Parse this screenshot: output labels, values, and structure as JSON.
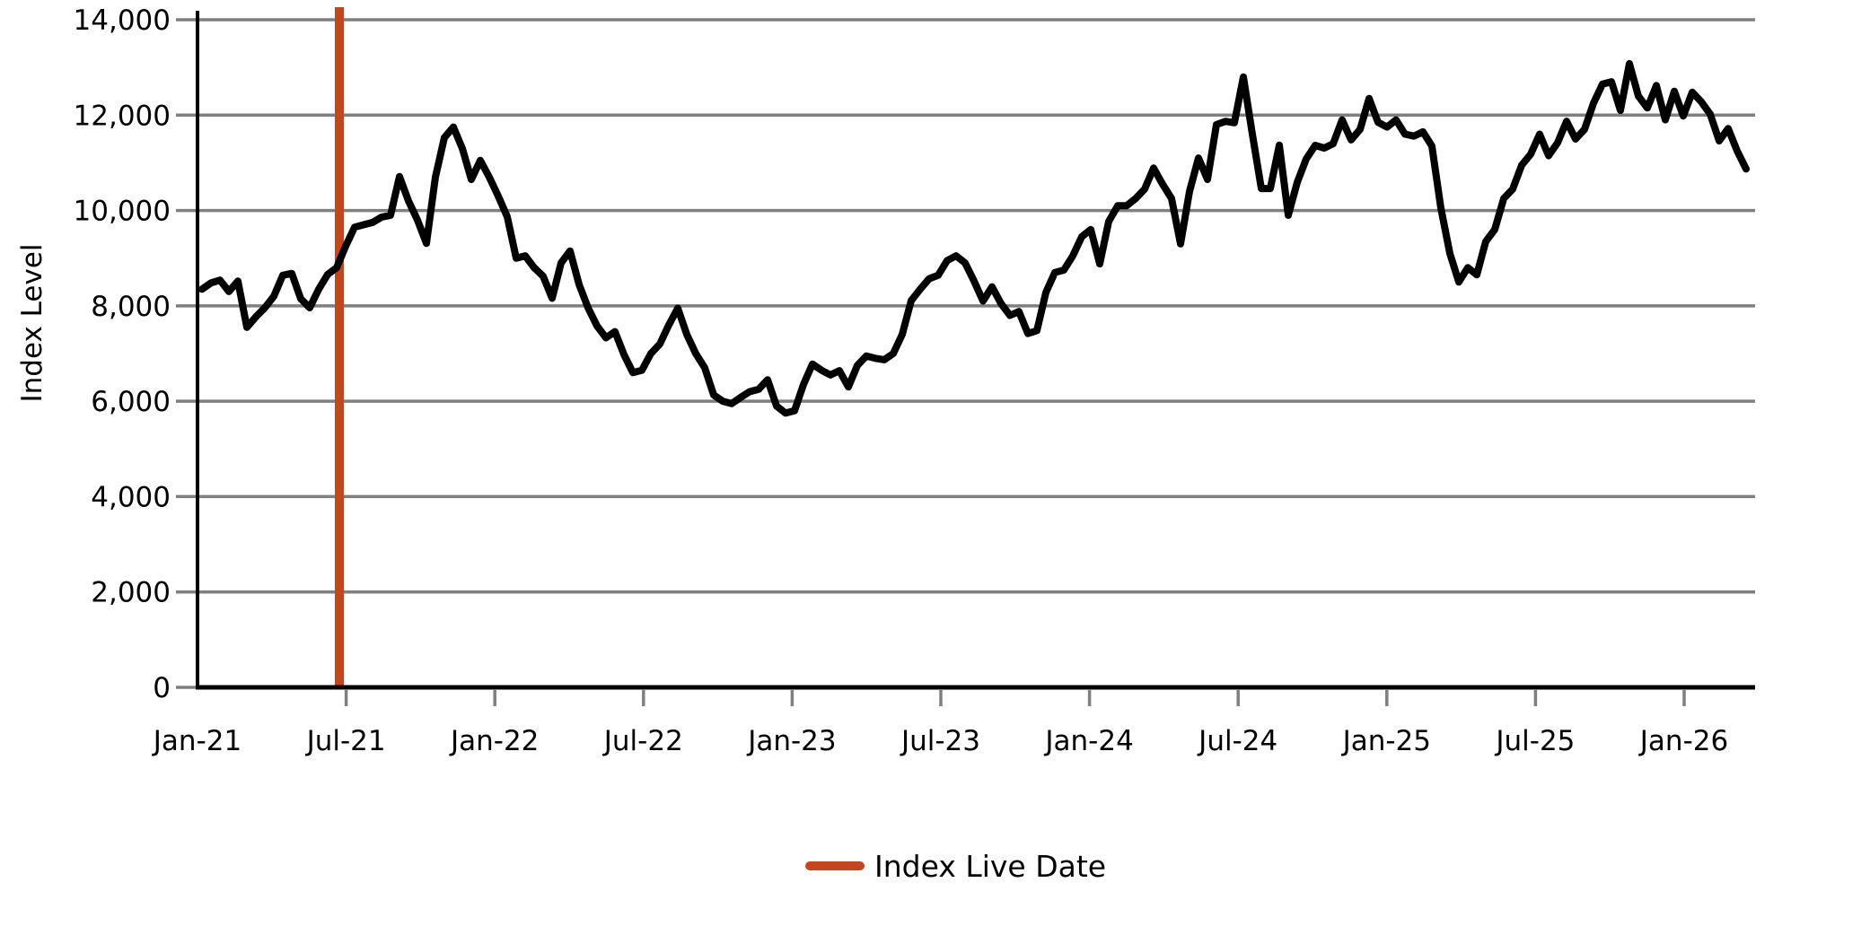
{
  "chart_data": {
    "type": "line",
    "title": "",
    "xlabel": "",
    "ylabel": "Index Level",
    "ylim": [
      0,
      14000
    ],
    "y_tick_values": [
      0,
      2000,
      4000,
      6000,
      8000,
      10000,
      12000,
      14000
    ],
    "y_tick_labels": [
      "0",
      "2,000",
      "4,000",
      "6,000",
      "8,000",
      "10,000",
      "12,000",
      "14,000"
    ],
    "x_tick_labels": [
      "Jan-21",
      "Jul-21",
      "Jan-22",
      "Jul-22",
      "Jan-23",
      "Jul-23",
      "Jan-24",
      "Jul-24",
      "Jan-25",
      "Jul-25",
      "Jan-26"
    ],
    "grid": true,
    "legend_position": "bottom-center",
    "legend": [
      {
        "label": "Index Live Date",
        "color": "#C5451D",
        "style": "vertical-line"
      }
    ],
    "annotations": [
      {
        "type": "vline",
        "name": "index-live-date",
        "date_approx": "2021-06-25",
        "color": "#C5451D"
      }
    ],
    "series": [
      {
        "name": "Index Level",
        "color": "#000000",
        "x_start_approx": "2021-01-06",
        "x_end_approx": "2026-03-20",
        "sampling": "evenly spaced, ~11 days per point",
        "values": [
          8350,
          8480,
          8540,
          8300,
          8520,
          7550,
          7770,
          7960,
          8200,
          8640,
          8680,
          8150,
          7960,
          8350,
          8660,
          8800,
          9250,
          9650,
          9700,
          9750,
          9860,
          9900,
          10710,
          10200,
          9800,
          9310,
          10700,
          11530,
          11750,
          11300,
          10650,
          11050,
          10700,
          10300,
          9870,
          9000,
          9050,
          8800,
          8620,
          8160,
          8900,
          9150,
          8450,
          7960,
          7580,
          7330,
          7460,
          6980,
          6600,
          6650,
          7000,
          7200,
          7600,
          7950,
          7400,
          7000,
          6700,
          6130,
          6000,
          5950,
          6080,
          6200,
          6250,
          6450,
          5900,
          5750,
          5800,
          6350,
          6780,
          6650,
          6550,
          6640,
          6300,
          6750,
          6950,
          6900,
          6870,
          7000,
          7400,
          8110,
          8350,
          8570,
          8640,
          8950,
          9050,
          8900,
          8520,
          8100,
          8400,
          8050,
          7800,
          7880,
          7420,
          7480,
          8280,
          8700,
          8750,
          9050,
          9450,
          9600,
          8880,
          9770,
          10100,
          10100,
          10250,
          10450,
          10890,
          10550,
          10250,
          9300,
          10400,
          11100,
          10650,
          11800,
          11870,
          11840,
          12800,
          11600,
          10460,
          10460,
          11370,
          9900,
          10590,
          11080,
          11365,
          11310,
          11400,
          11900,
          11480,
          11700,
          12350,
          11850,
          11750,
          11900,
          11600,
          11560,
          11650,
          11350,
          10050,
          9100,
          8500,
          8800,
          8650,
          9350,
          9600,
          10250,
          10450,
          10950,
          11180,
          11600,
          11150,
          11420,
          11870,
          11500,
          11700,
          12250,
          12650,
          12700,
          12100,
          13080,
          12400,
          12150,
          12620,
          11900,
          12500,
          11980,
          12480,
          12280,
          12020,
          11460,
          11720,
          11250,
          10870
        ]
      }
    ],
    "colors": {
      "series": "#000000",
      "live_date_line": "#C5451D",
      "gridline": "#7F7F7F",
      "axis_spine": "#000000",
      "background": "#FFFFFF"
    }
  }
}
